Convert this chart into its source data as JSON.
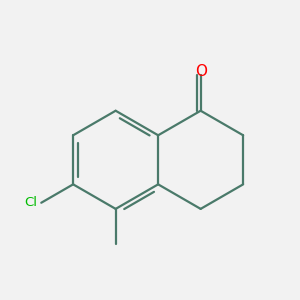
{
  "background_color": "#f2f2f2",
  "bond_color": "#4a7a6a",
  "o_color": "#ff0000",
  "cl_color": "#00bb00",
  "figsize": [
    3.0,
    3.0
  ],
  "dpi": 100,
  "bond_lw": 1.6,
  "s": 1.0
}
